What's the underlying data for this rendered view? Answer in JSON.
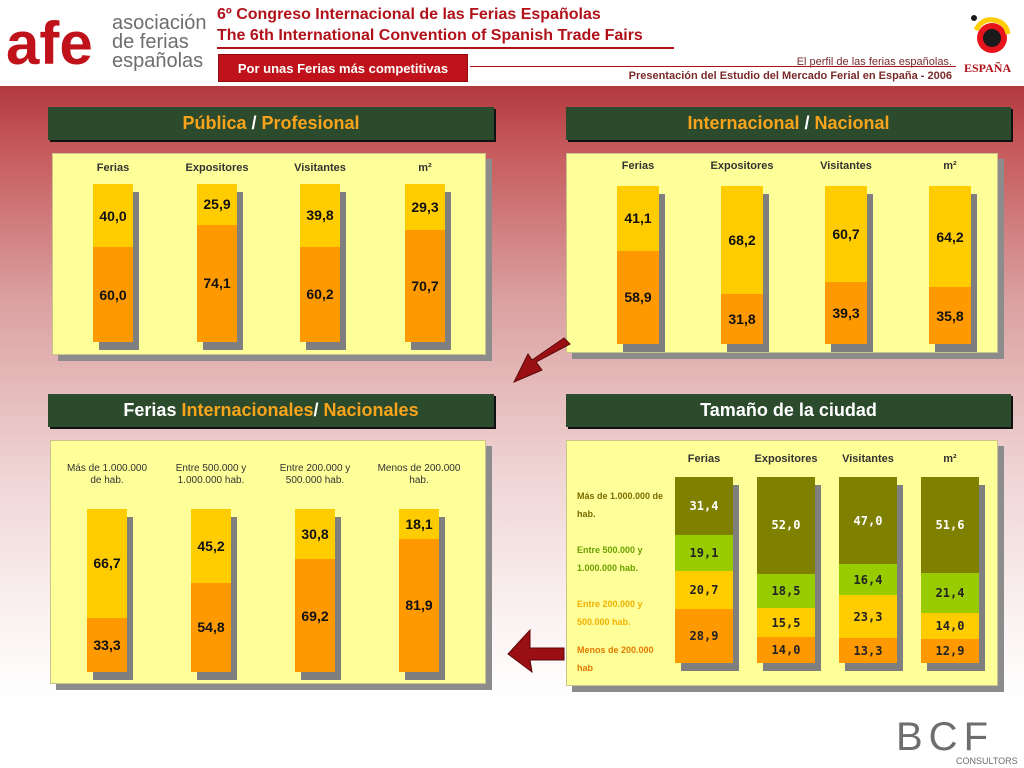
{
  "header": {
    "logo_text": "afe",
    "org_lines": [
      "asociación",
      "de ferias",
      "españolas"
    ],
    "title_es": "6º Congreso Internacional de las Ferias Españolas",
    "title_en": "The 6th International Convention of Spanish Trade Fairs",
    "slogan": "Por unas Ferias más competitivas",
    "subtitle1": "El perfil de las ferias españolas.",
    "subtitle2": "Presentación del Estudio del Mercado Ferial en España - 2006",
    "espana_logo_text": "ESPAÑA",
    "footer_logo": "BCF",
    "footer_logo_sub": "CONSULTORS"
  },
  "colors": {
    "light": "#ffcc00",
    "dark": "#ff9900",
    "olive": "#808000",
    "green": "#99cc00",
    "title_bg": "#2c4a2c",
    "accent": "#f7a41c"
  },
  "chart_data": [
    {
      "type": "bar",
      "stacked": true,
      "title_parts": [
        "Pública",
        " / ",
        "Profesional"
      ],
      "categories": [
        "Ferias",
        "Expositores",
        "Visitantes",
        "m²"
      ],
      "series": [
        {
          "values": [
            60.0,
            74.1,
            60.2,
            70.7
          ]
        },
        {
          "values": [
            40.0,
            25.9,
            39.8,
            29.3
          ]
        }
      ],
      "labels": [
        [
          "60,0",
          "74,1",
          "60,2",
          "70,7"
        ],
        [
          "40,0",
          "25,9",
          "39,8",
          "29,3"
        ]
      ]
    },
    {
      "type": "bar",
      "stacked": true,
      "title_parts": [
        "Internacional",
        " / ",
        "Nacional"
      ],
      "categories": [
        "Ferias",
        "Expositores",
        "Visitantes",
        "m²"
      ],
      "series": [
        {
          "values": [
            58.9,
            31.8,
            39.3,
            35.8
          ]
        },
        {
          "values": [
            41.1,
            68.2,
            60.7,
            64.2
          ]
        }
      ],
      "labels": [
        [
          "58,9",
          "31,8",
          "39,3",
          "35,8"
        ],
        [
          "41,1",
          "68,2",
          "60,7",
          "64,2"
        ]
      ]
    },
    {
      "type": "bar",
      "stacked": true,
      "title_parts": [
        "Ferias  ",
        "Internacionales",
        "/ ",
        "Nacionales"
      ],
      "categories": [
        "Más de 1.000.000 de hab.",
        "Entre 500.000 y 1.000.000 hab.",
        "Entre 200.000 y 500.000 hab.",
        "Menos de 200.000 hab."
      ],
      "series": [
        {
          "values": [
            33.3,
            54.8,
            69.2,
            81.9
          ]
        },
        {
          "values": [
            66.7,
            45.2,
            30.8,
            18.1
          ]
        }
      ],
      "labels": [
        [
          "33,3",
          "54,8",
          "69,2",
          "81,9"
        ],
        [
          "66,7",
          "45,2",
          "30,8",
          "18,1"
        ]
      ]
    },
    {
      "type": "bar",
      "stacked": true,
      "title": "Tamaño de la ciudad",
      "categories": [
        "Ferias",
        "Expositores",
        "Visitantes",
        "m²"
      ],
      "legend": [
        "Más de 1.000.000 de hab.",
        "Entre 500.000 y 1.000.000 hab.",
        "Entre 200.000 y 500.000 hab.",
        "Menos de 200.000 hab"
      ],
      "series": [
        {
          "values": [
            28.9,
            14.0,
            13.3,
            12.9
          ]
        },
        {
          "values": [
            20.7,
            15.5,
            23.3,
            14.0
          ]
        },
        {
          "values": [
            19.1,
            18.5,
            16.4,
            21.4
          ]
        },
        {
          "values": [
            31.4,
            52.0,
            47.0,
            51.6
          ]
        }
      ],
      "labels": [
        [
          "28,9",
          "14,0",
          "13,3",
          "12,9"
        ],
        [
          "20,7",
          "15,5",
          "23,3",
          "14,0"
        ],
        [
          "19,1",
          "18,5",
          "16,4",
          "21,4"
        ],
        [
          "31,4",
          "52,0",
          "47,0",
          "51,6"
        ]
      ]
    }
  ]
}
